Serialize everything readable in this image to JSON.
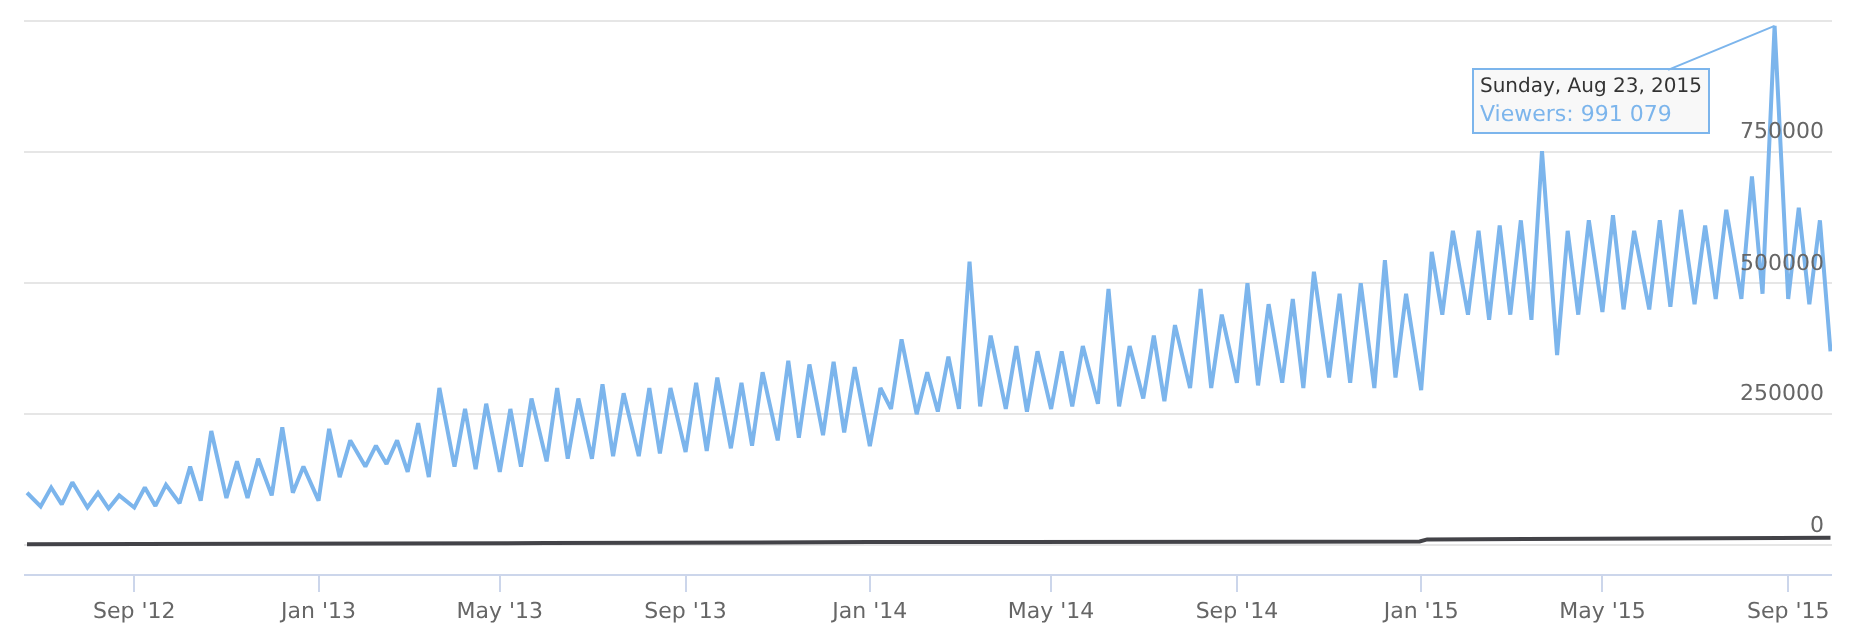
{
  "chart_data": {
    "type": "line",
    "x": [
      "2012-06-22",
      "2012-07-01",
      "2012-07-08",
      "2012-07-15",
      "2012-07-22",
      "2012-08-01",
      "2012-08-08",
      "2012-08-15",
      "2012-08-22",
      "2012-09-01",
      "2012-09-08",
      "2012-09-15",
      "2012-09-22",
      "2012-10-01",
      "2012-10-08",
      "2012-10-15",
      "2012-10-22",
      "2012-11-01",
      "2012-11-08",
      "2012-11-15",
      "2012-11-22",
      "2012-12-01",
      "2012-12-08",
      "2012-12-15",
      "2012-12-22",
      "2013-01-01",
      "2013-01-08",
      "2013-01-15",
      "2013-01-22",
      "2013-02-01",
      "2013-02-08",
      "2013-02-15",
      "2013-02-22",
      "2013-03-01",
      "2013-03-08",
      "2013-03-15",
      "2013-03-22",
      "2013-04-01",
      "2013-04-08",
      "2013-04-15",
      "2013-04-22",
      "2013-05-01",
      "2013-05-08",
      "2013-05-15",
      "2013-05-22",
      "2013-06-01",
      "2013-06-08",
      "2013-06-15",
      "2013-06-22",
      "2013-07-01",
      "2013-07-08",
      "2013-07-15",
      "2013-07-22",
      "2013-08-01",
      "2013-08-08",
      "2013-08-15",
      "2013-08-22",
      "2013-09-01",
      "2013-09-08",
      "2013-09-15",
      "2013-09-22",
      "2013-10-01",
      "2013-10-08",
      "2013-10-15",
      "2013-10-22",
      "2013-11-01",
      "2013-11-08",
      "2013-11-15",
      "2013-11-22",
      "2013-12-01",
      "2013-12-08",
      "2013-12-15",
      "2013-12-22",
      "2014-01-01",
      "2014-01-08",
      "2014-01-15",
      "2014-01-22",
      "2014-02-01",
      "2014-02-08",
      "2014-02-15",
      "2014-02-22",
      "2014-03-01",
      "2014-03-08",
      "2014-03-15",
      "2014-03-22",
      "2014-04-01",
      "2014-04-08",
      "2014-04-15",
      "2014-04-22",
      "2014-05-01",
      "2014-05-08",
      "2014-05-15",
      "2014-05-22",
      "2014-06-01",
      "2014-06-08",
      "2014-06-15",
      "2014-06-22",
      "2014-07-01",
      "2014-07-08",
      "2014-07-15",
      "2014-07-22",
      "2014-08-01",
      "2014-08-08",
      "2014-08-15",
      "2014-08-22",
      "2014-09-01",
      "2014-09-08",
      "2014-09-15",
      "2014-09-22",
      "2014-10-01",
      "2014-10-08",
      "2014-10-15",
      "2014-10-22",
      "2014-11-01",
      "2014-11-08",
      "2014-11-15",
      "2014-11-22",
      "2014-12-01",
      "2014-12-08",
      "2014-12-15",
      "2014-12-22",
      "2015-01-01",
      "2015-01-08",
      "2015-01-15",
      "2015-01-22",
      "2015-02-01",
      "2015-02-08",
      "2015-02-15",
      "2015-02-22",
      "2015-03-01",
      "2015-03-08",
      "2015-03-15",
      "2015-03-22",
      "2015-04-01",
      "2015-04-08",
      "2015-04-15",
      "2015-04-22",
      "2015-05-01",
      "2015-05-08",
      "2015-05-15",
      "2015-05-22",
      "2015-06-01",
      "2015-06-08",
      "2015-06-15",
      "2015-06-22",
      "2015-07-01",
      "2015-07-08",
      "2015-07-15",
      "2015-07-22",
      "2015-08-01",
      "2015-08-08",
      "2015-08-15",
      "2015-08-23",
      "2015-09-01",
      "2015-09-08",
      "2015-09-15",
      "2015-09-22",
      "2015-09-29"
    ],
    "series": [
      {
        "color": "#7cb5ec",
        "values": [
          100000,
          74000,
          110000,
          78000,
          120000,
          72000,
          100000,
          70000,
          95000,
          72000,
          110000,
          75000,
          115000,
          80000,
          150000,
          85000,
          218000,
          90000,
          160000,
          90000,
          165000,
          95000,
          225000,
          100000,
          150000,
          85000,
          222000,
          130000,
          200000,
          150000,
          190000,
          155000,
          200000,
          140000,
          233000,
          130000,
          300000,
          150000,
          260000,
          145000,
          270000,
          140000,
          260000,
          150000,
          280000,
          160000,
          300000,
          165000,
          280000,
          165000,
          307000,
          170000,
          290000,
          170000,
          300000,
          175000,
          300000,
          178000,
          310000,
          180000,
          320000,
          185000,
          310000,
          190000,
          330000,
          200000,
          352000,
          205000,
          345000,
          210000,
          350000,
          215000,
          340000,
          189000,
          300000,
          260000,
          393000,
          250000,
          330000,
          255000,
          360000,
          260000,
          541000,
          265000,
          400000,
          260000,
          380000,
          255000,
          370000,
          260000,
          370000,
          265000,
          380000,
          270000,
          489000,
          265000,
          380000,
          280000,
          400000,
          275000,
          420000,
          300000,
          489000,
          300000,
          440000,
          310000,
          500000,
          305000,
          460000,
          310000,
          470000,
          300000,
          522000,
          320000,
          480000,
          310000,
          500000,
          300000,
          544000,
          320000,
          480000,
          296000,
          560000,
          440000,
          600000,
          440000,
          600000,
          430000,
          610000,
          440000,
          620000,
          430000,
          752000,
          363000,
          600000,
          440000,
          620000,
          445000,
          630000,
          450000,
          600000,
          450000,
          620000,
          455000,
          640000,
          460000,
          610000,
          470000,
          640000,
          470000,
          704000,
          480000,
          991079,
          470000,
          644000,
          460000,
          620000,
          370000
        ]
      },
      {
        "color": "#434348",
        "x": [
          "2012-06-22",
          "2013-06-01",
          "2014-01-01",
          "2014-12-31",
          "2015-01-05",
          "2015-09-29"
        ],
        "values": [
          2000,
          4000,
          6000,
          7000,
          11000,
          14000
        ]
      }
    ],
    "xlim": [
      "2012-06-20",
      "2015-09-30"
    ],
    "xticks": [
      {
        "value": "2012-09-01",
        "label": "Sep '12"
      },
      {
        "value": "2013-01-01",
        "label": "Jan '13"
      },
      {
        "value": "2013-05-01",
        "label": "May '13"
      },
      {
        "value": "2013-09-01",
        "label": "Sep '13"
      },
      {
        "value": "2014-01-01",
        "label": "Jan '14"
      },
      {
        "value": "2014-05-01",
        "label": "May '14"
      },
      {
        "value": "2014-09-01",
        "label": "Sep '14"
      },
      {
        "value": "2015-01-01",
        "label": "Jan '15"
      },
      {
        "value": "2015-05-01",
        "label": "May '15"
      },
      {
        "value": "2015-09-01",
        "label": "Sep '15"
      }
    ],
    "ylim": [
      -55000,
      1010000
    ],
    "yticks": [
      0,
      250000,
      500000,
      750000,
      {
        "value": 1000000,
        "label": null
      }
    ],
    "grid": "y",
    "annotations": [
      {
        "text": "Sunday, Aug 23, 2015\nViewers: 991 079",
        "x": "2015-08-23",
        "y": 991079
      }
    ]
  }
}
